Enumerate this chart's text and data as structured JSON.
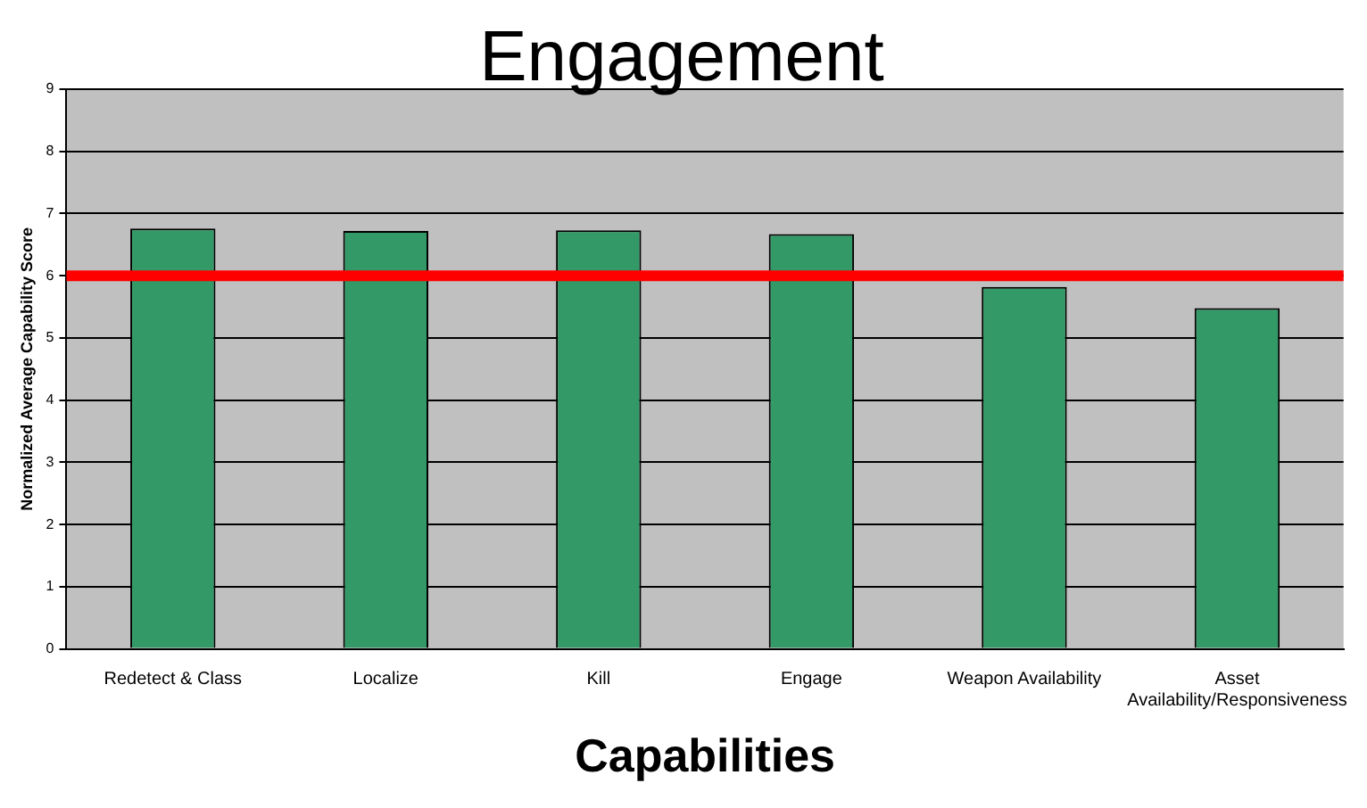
{
  "chart_data": {
    "type": "bar",
    "title": "Engagement",
    "xlabel": "Capabilities",
    "ylabel": "Normalized Average Capability Score",
    "categories": [
      "Redetect & Class",
      "Localize",
      "Kill",
      "Engage",
      "Weapon Availability",
      "Asset Availability/Responsiveness"
    ],
    "values": [
      6.76,
      6.72,
      6.73,
      6.67,
      5.82,
      5.48
    ],
    "color": "#339966",
    "ylim": [
      0,
      9
    ],
    "yticks": [
      0,
      1,
      2,
      3,
      4,
      5,
      6,
      7,
      8,
      9
    ],
    "grid": "y",
    "ref_lines": [
      {
        "axis": "y",
        "value": 6,
        "color": "#ff0000"
      }
    ]
  }
}
